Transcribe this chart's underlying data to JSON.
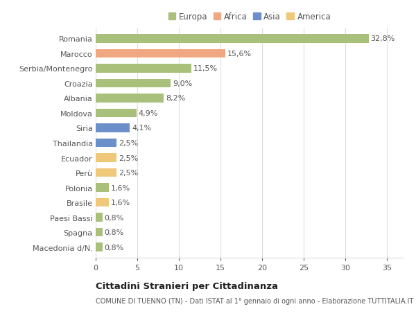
{
  "categories": [
    "Romania",
    "Marocco",
    "Serbia/Montenegro",
    "Croazia",
    "Albania",
    "Moldova",
    "Siria",
    "Thailandia",
    "Ecuador",
    "Perù",
    "Polonia",
    "Brasile",
    "Paesi Bassi",
    "Spagna",
    "Macedonia d/N."
  ],
  "values": [
    32.8,
    15.6,
    11.5,
    9.0,
    8.2,
    4.9,
    4.1,
    2.5,
    2.5,
    2.5,
    1.6,
    1.6,
    0.8,
    0.8,
    0.8
  ],
  "labels": [
    "32,8%",
    "15,6%",
    "11,5%",
    "9,0%",
    "8,2%",
    "4,9%",
    "4,1%",
    "2,5%",
    "2,5%",
    "2,5%",
    "1,6%",
    "1,6%",
    "0,8%",
    "0,8%",
    "0,8%"
  ],
  "regions": [
    "Europa",
    "Africa",
    "Europa",
    "Europa",
    "Europa",
    "Europa",
    "Asia",
    "Asia",
    "America",
    "America",
    "Europa",
    "America",
    "Europa",
    "Europa",
    "Europa"
  ],
  "colors": {
    "Europa": "#a8c07a",
    "Africa": "#f0a882",
    "Asia": "#6b8fc9",
    "America": "#f0c87a"
  },
  "xlim": [
    0,
    37
  ],
  "xticks": [
    0,
    5,
    10,
    15,
    20,
    25,
    30,
    35
  ],
  "background_color": "#ffffff",
  "plot_bg_color": "#ffffff",
  "title": "Cittadini Stranieri per Cittadinanza",
  "subtitle": "COMUNE DI TUENNO (TN) - Dati ISTAT al 1° gennaio di ogni anno - Elaborazione TUTTITALIA.IT",
  "bar_height": 0.6,
  "grid_color": "#dddddd",
  "text_color": "#555555",
  "label_fontsize": 8.0,
  "tick_fontsize": 8.0,
  "legend_order": [
    "Europa",
    "Africa",
    "Asia",
    "America"
  ]
}
